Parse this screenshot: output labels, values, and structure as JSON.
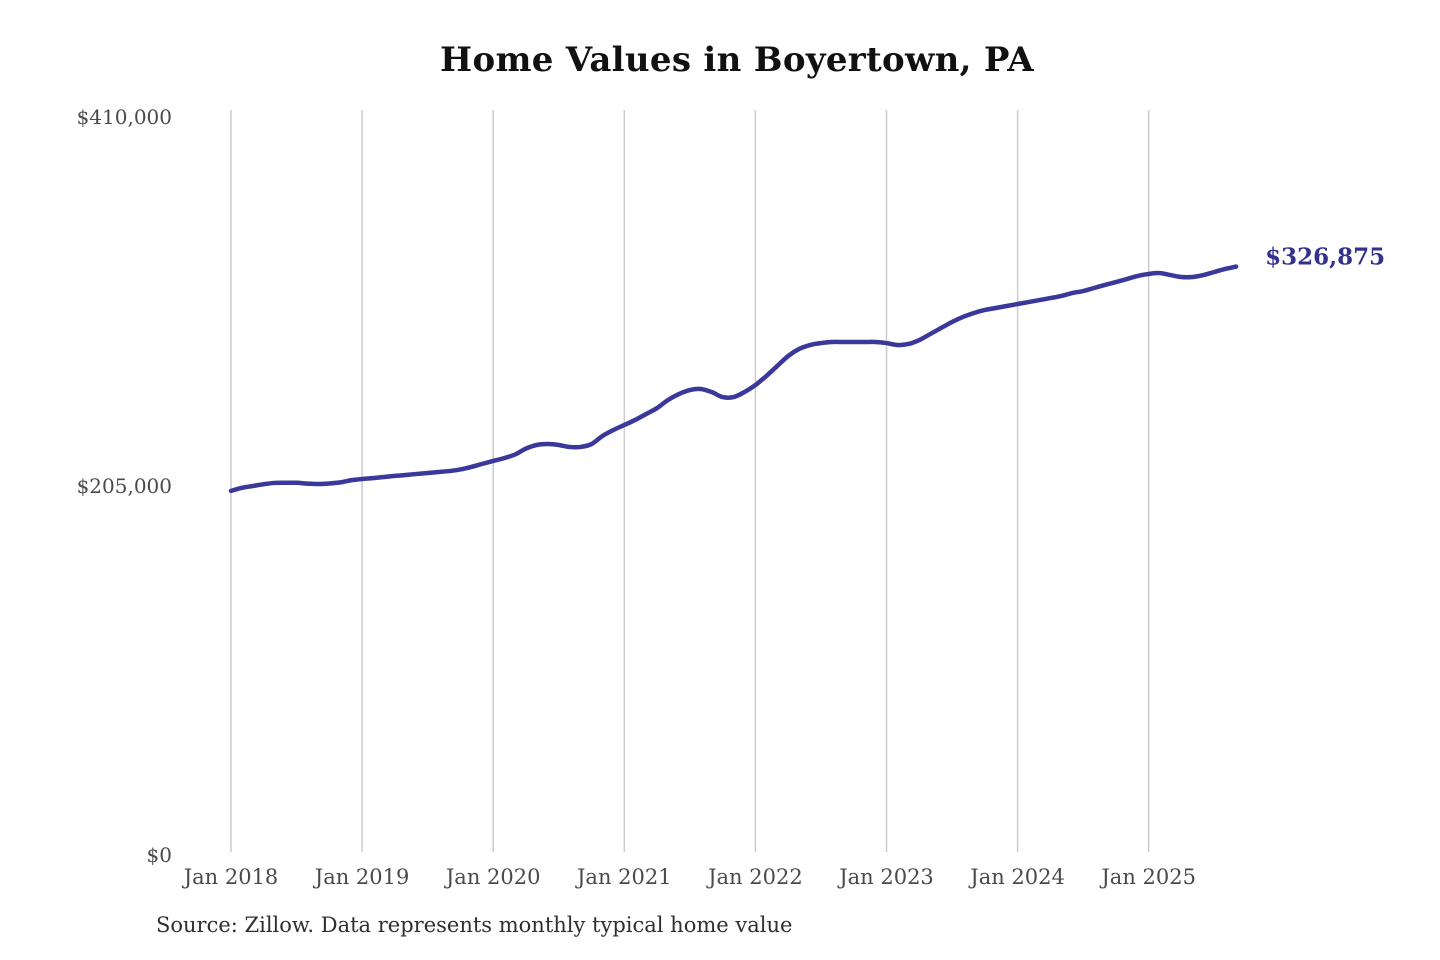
{
  "chart_data": {
    "type": "line",
    "title": "Home Values in Boyertown, PA",
    "series_name": "Monthly typical home value",
    "unit": "USD",
    "ylim": [
      0,
      410000
    ],
    "grid": "vertical-only",
    "legend": "none",
    "latest_value_label": "$326,875",
    "latest_value": 326875,
    "source": "Source: Zillow. Data represents monthly typical home value",
    "y_ticks": [
      {
        "value": 0,
        "label": "$0"
      },
      {
        "value": 205000,
        "label": "$205,000"
      },
      {
        "value": 410000,
        "label": "$410,000"
      }
    ],
    "x_ticks": [
      {
        "month": "2018-01",
        "label": "Jan 2018"
      },
      {
        "month": "2019-01",
        "label": "Jan 2019"
      },
      {
        "month": "2020-01",
        "label": "Jan 2020"
      },
      {
        "month": "2021-01",
        "label": "Jan 2021"
      },
      {
        "month": "2022-01",
        "label": "Jan 2022"
      },
      {
        "month": "2023-01",
        "label": "Jan 2023"
      },
      {
        "month": "2024-01",
        "label": "Jan 2024"
      },
      {
        "month": "2025-01",
        "label": "Jan 2025"
      }
    ],
    "x": [
      "2018-01",
      "2018-02",
      "2018-03",
      "2018-04",
      "2018-05",
      "2018-06",
      "2018-07",
      "2018-08",
      "2018-09",
      "2018-10",
      "2018-11",
      "2018-12",
      "2019-01",
      "2019-02",
      "2019-03",
      "2019-04",
      "2019-05",
      "2019-06",
      "2019-07",
      "2019-08",
      "2019-09",
      "2019-10",
      "2019-11",
      "2019-12",
      "2020-01",
      "2020-02",
      "2020-03",
      "2020-04",
      "2020-05",
      "2020-06",
      "2020-07",
      "2020-08",
      "2020-09",
      "2020-10",
      "2020-11",
      "2020-12",
      "2021-01",
      "2021-02",
      "2021-03",
      "2021-04",
      "2021-05",
      "2021-06",
      "2021-07",
      "2021-08",
      "2021-09",
      "2021-10",
      "2021-11",
      "2021-12",
      "2022-01",
      "2022-02",
      "2022-03",
      "2022-04",
      "2022-05",
      "2022-06",
      "2022-07",
      "2022-08",
      "2022-09",
      "2022-10",
      "2022-11",
      "2022-12",
      "2023-01",
      "2023-02",
      "2023-03",
      "2023-04",
      "2023-05",
      "2023-06",
      "2023-07",
      "2023-08",
      "2023-09",
      "2023-10",
      "2023-11",
      "2023-12",
      "2024-01",
      "2024-02",
      "2024-03",
      "2024-04",
      "2024-05",
      "2024-06",
      "2024-07",
      "2024-08",
      "2024-09",
      "2024-10",
      "2024-11",
      "2024-12",
      "2025-01",
      "2025-02",
      "2025-03",
      "2025-04",
      "2025-05",
      "2025-06",
      "2025-07",
      "2025-08",
      "2025-09"
    ],
    "values": [
      202300,
      204000,
      205000,
      206000,
      206700,
      206800,
      206800,
      206300,
      206100,
      206400,
      207000,
      208200,
      208900,
      209400,
      210000,
      210600,
      211100,
      211700,
      212200,
      212800,
      213300,
      214200,
      215600,
      217300,
      218900,
      220500,
      222500,
      225800,
      227800,
      228300,
      227800,
      226700,
      226700,
      228300,
      232800,
      236100,
      238900,
      241700,
      245000,
      248300,
      252800,
      256100,
      258300,
      258900,
      257200,
      254400,
      254400,
      257200,
      261100,
      266100,
      271700,
      277200,
      281100,
      283300,
      284400,
      285000,
      285000,
      285000,
      285000,
      285000,
      284400,
      283300,
      283900,
      286100,
      289400,
      292800,
      296100,
      298900,
      301100,
      302800,
      303900,
      305000,
      306100,
      307200,
      308300,
      309400,
      310600,
      312200,
      313300,
      315000,
      316700,
      318300,
      320000,
      321700,
      322800,
      323300,
      322200,
      321100,
      321100,
      322200,
      323900,
      325600,
      326875
    ],
    "colors": {
      "line": "#3a389a",
      "latest_label": "#32318e",
      "grid": "#cccccc",
      "tick_text": "#4a4a4a",
      "title_text": "#111111",
      "source_text": "#2f2f2f"
    }
  }
}
